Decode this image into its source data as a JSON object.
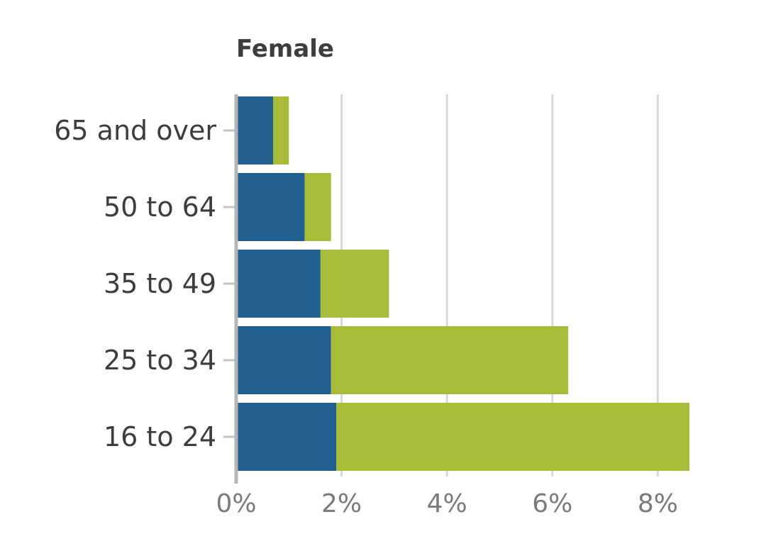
{
  "chart_data": {
    "type": "bar",
    "orientation": "horizontal",
    "stacked": true,
    "title": "Female",
    "categories": [
      "65 and over",
      "50 to 64",
      "35 to 49",
      "25 to 34",
      "16 to 24"
    ],
    "series": [
      {
        "color": "#215f91",
        "values": [
          0.7,
          1.3,
          1.6,
          1.8,
          1.9
        ]
      },
      {
        "color": "#a8bc3a",
        "values": [
          0.3,
          0.5,
          1.3,
          4.5,
          6.7
        ]
      }
    ],
    "xlim": [
      0,
      8.6
    ],
    "xticks": [
      0,
      2,
      4,
      6,
      8
    ],
    "xtick_labels": [
      "0%",
      "2%",
      "4%",
      "6%",
      "8%"
    ],
    "grid": true,
    "xlabel": "",
    "ylabel": ""
  }
}
